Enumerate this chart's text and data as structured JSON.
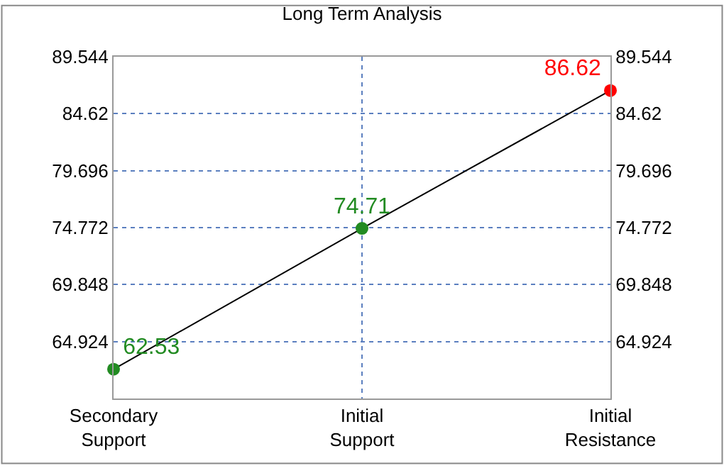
{
  "chart_data": {
    "type": "line",
    "title": "Long Term Analysis",
    "categories": [
      "Secondary\nSupport",
      "Initial\nSupport",
      "Initial\nResistance"
    ],
    "series": [
      {
        "color": "#000000",
        "colors": [
          "#228b22",
          "#228b22",
          "#ff0000"
        ],
        "values": [
          62.53,
          74.71,
          86.62
        ]
      }
    ],
    "data_labels": true,
    "marker": "circle",
    "line_style": "solid",
    "ylim": [
      60,
      89.544
    ],
    "yticks": [
      64.924,
      69.848,
      74.772,
      79.696,
      84.62,
      89.544
    ],
    "y2lim": [
      60,
      89.544
    ],
    "y2ticks": [
      64.924,
      69.848,
      74.772,
      79.696,
      84.62,
      89.544
    ],
    "grid": true,
    "legend": false
  }
}
